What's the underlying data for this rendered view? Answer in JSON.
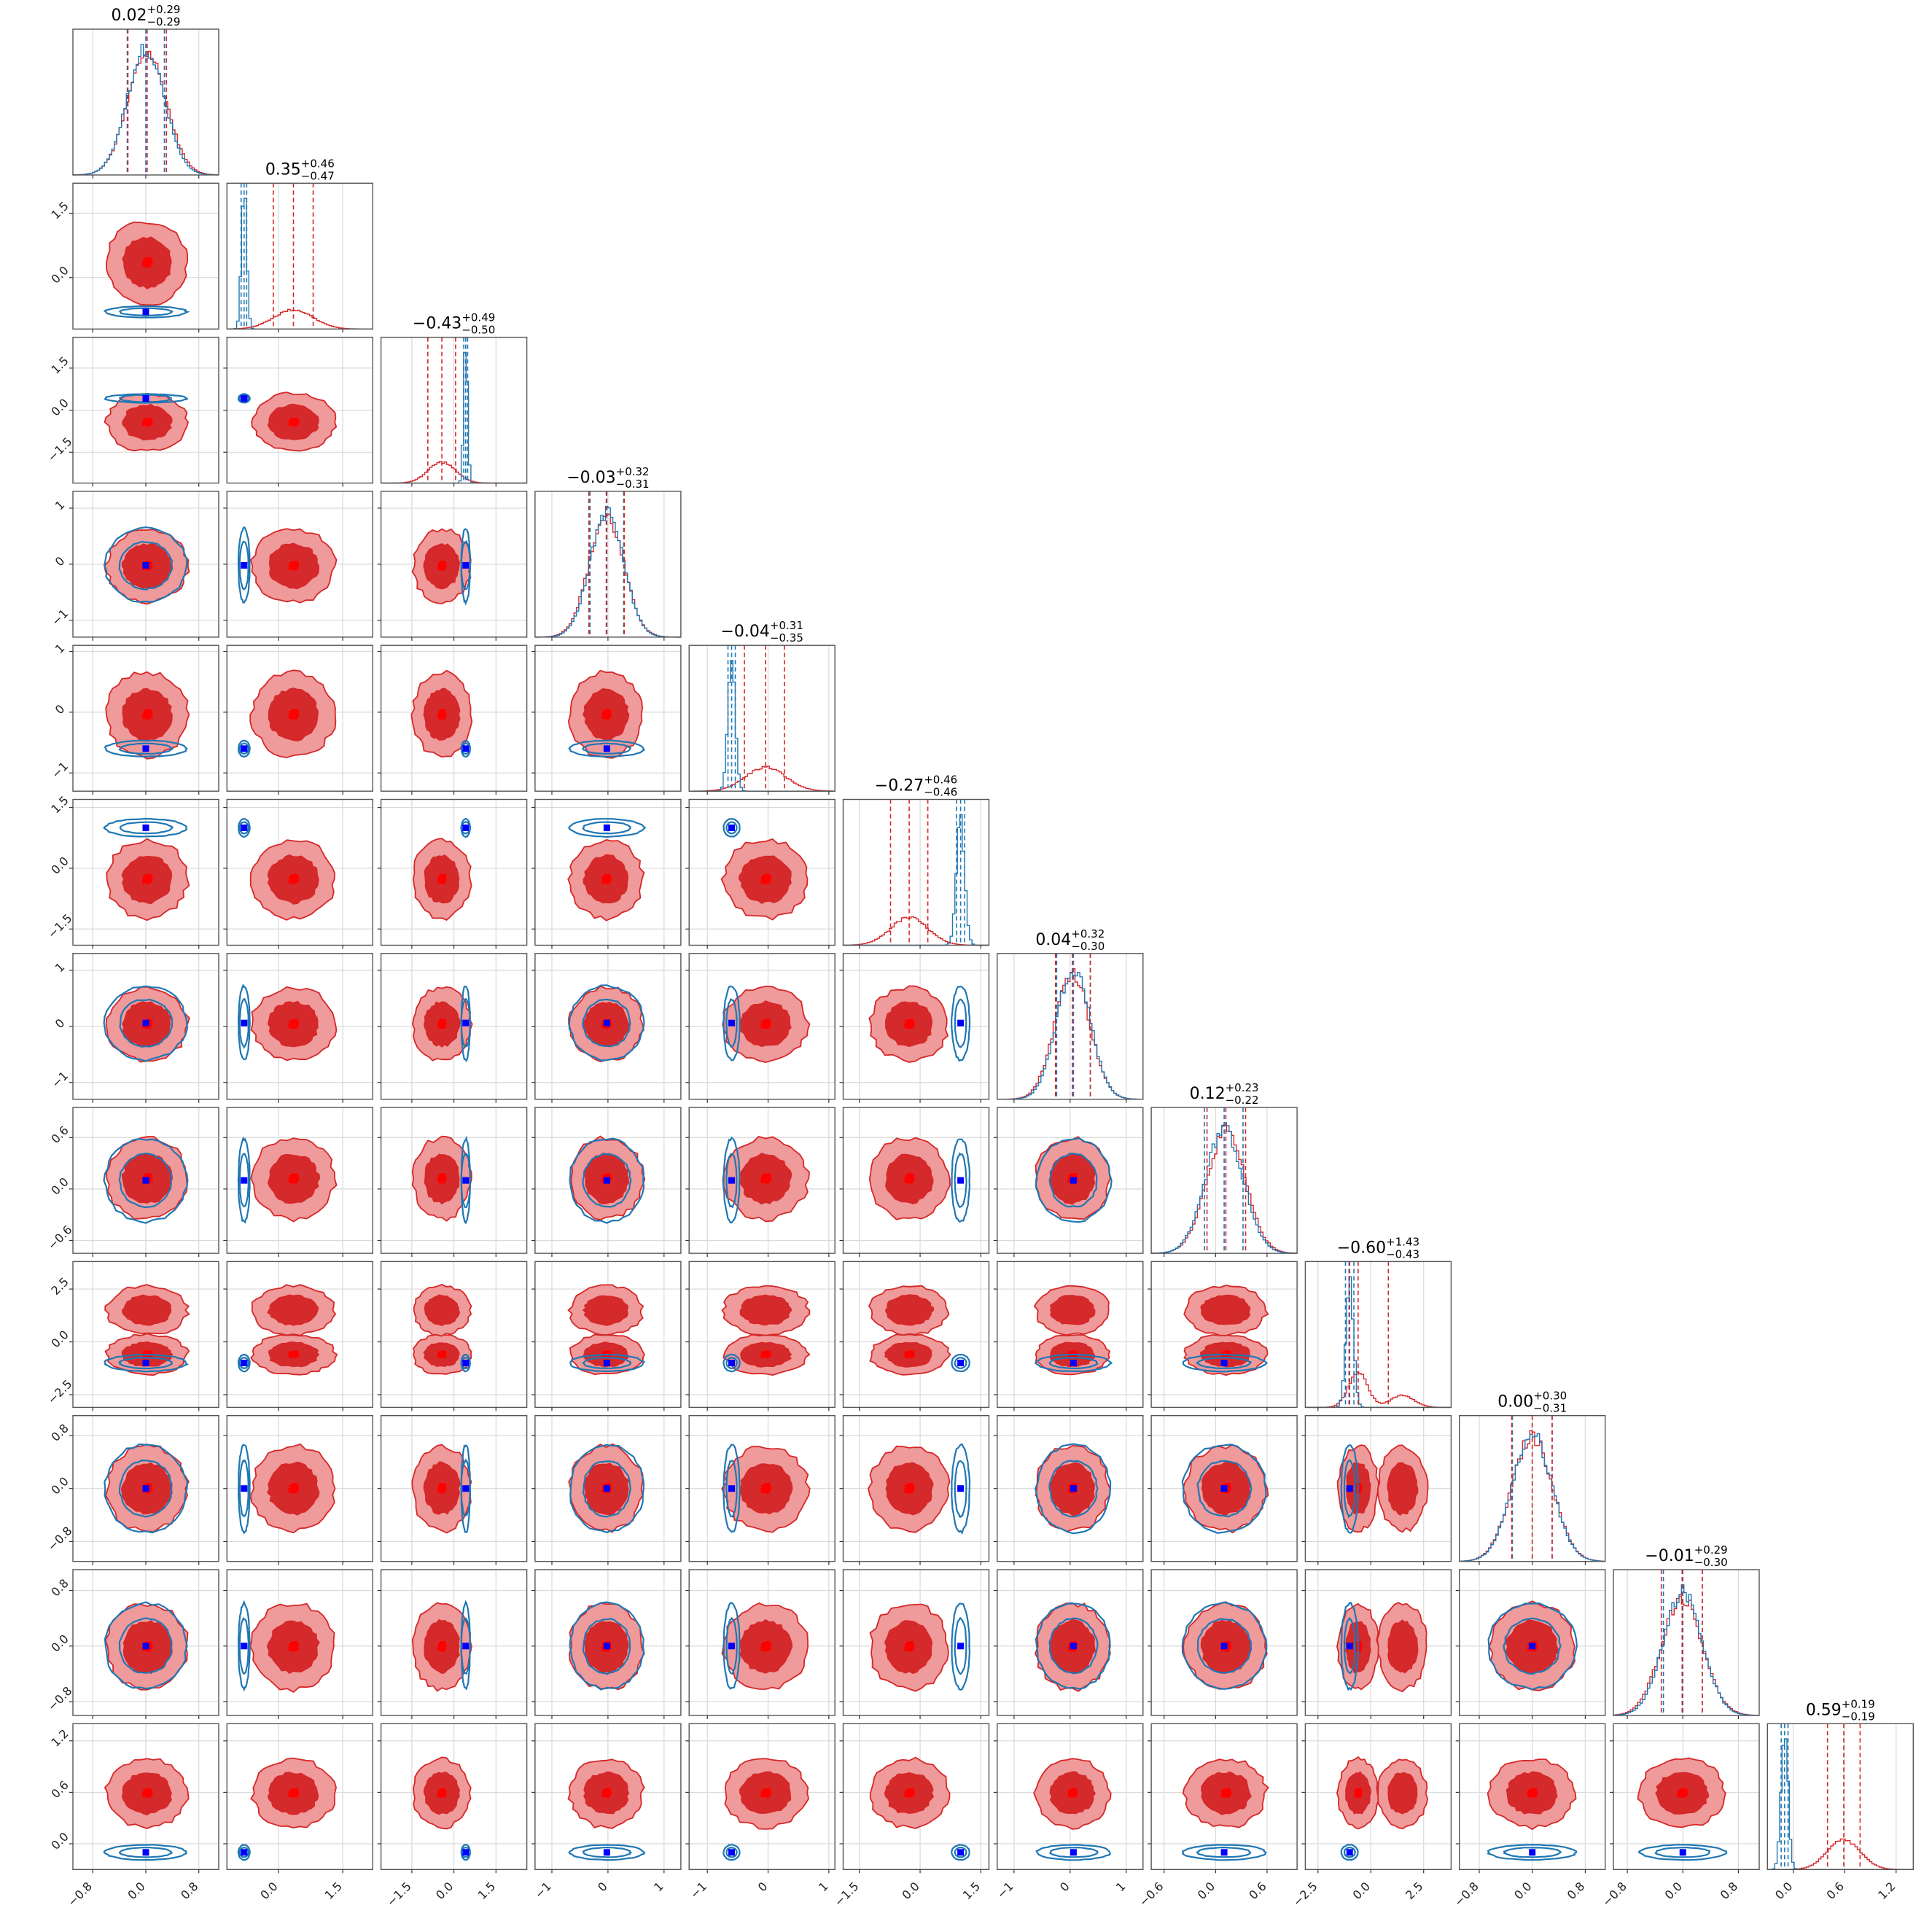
{
  "colors": {
    "red": "#d62728",
    "blue": "#1f77b4",
    "marker_red": "#ff0000",
    "marker_blue": "#0000ff",
    "red_fill_outer": "#ef9a9b",
    "red_fill_inner": "#d42a2b"
  },
  "chart_data": {
    "type": "corner",
    "n_params": 12,
    "titles": [
      {
        "main": "0.02",
        "plus": "+0.29",
        "minus": "−0.29"
      },
      {
        "main": "0.35",
        "plus": "+0.46",
        "minus": "−0.47"
      },
      {
        "main": "−0.43",
        "plus": "+0.49",
        "minus": "−0.50"
      },
      {
        "main": "−0.03",
        "plus": "+0.32",
        "minus": "−0.31"
      },
      {
        "main": "−0.04",
        "plus": "+0.31",
        "minus": "−0.35"
      },
      {
        "main": "−0.27",
        "plus": "+0.46",
        "minus": "−0.46"
      },
      {
        "main": "0.04",
        "plus": "+0.32",
        "minus": "−0.30"
      },
      {
        "main": "0.12",
        "plus": "+0.23",
        "minus": "−0.22"
      },
      {
        "main": "−0.60",
        "plus": "+1.43",
        "minus": "−0.43"
      },
      {
        "main": "0.00",
        "plus": "+0.30",
        "minus": "−0.31"
      },
      {
        "main": "−0.01",
        "plus": "+0.29",
        "minus": "−0.30"
      },
      {
        "main": "0.59",
        "plus": "+0.19",
        "minus": "−0.19"
      }
    ],
    "params": [
      {
        "range": [
          -1.1,
          1.1
        ],
        "ticks": [
          -0.8,
          0.0,
          0.8
        ],
        "tick_labels": [
          "−0.8",
          "0.0",
          "0.8"
        ],
        "red": {
          "mean": 0.02,
          "sd": 0.29
        },
        "blue": {
          "mean": 0.0,
          "sd": 0.28
        },
        "lines": {
          "red": [
            -0.27,
            0.02,
            0.31
          ],
          "blue": [
            -0.28,
            0.0,
            0.28
          ]
        }
      },
      {
        "range": [
          -1.2,
          2.2
        ],
        "ticks": [
          0.0,
          1.5
        ],
        "tick_labels": [
          "0.0",
          "1.5"
        ],
        "y_ticks": [
          0.0,
          1.5
        ],
        "y_tick_labels": [
          "0.0",
          "1.5"
        ],
        "red": {
          "mean": 0.35,
          "sd": 0.46
        },
        "blue": {
          "mean": -0.8,
          "sd": 0.06
        },
        "lines": {
          "red": [
            -0.12,
            0.35,
            0.81
          ],
          "blue": [
            -0.87,
            -0.8,
            -0.74
          ]
        }
      },
      {
        "range": [
          -2.6,
          2.6
        ],
        "ticks": [
          -1.5,
          0.0,
          1.5
        ],
        "tick_labels": [
          "−1.5",
          "0.0",
          "1.5"
        ],
        "red": {
          "mean": -0.43,
          "sd": 0.49
        },
        "blue": {
          "mean": 0.42,
          "sd": 0.07
        },
        "lines": {
          "red": [
            -0.93,
            -0.43,
            0.06
          ],
          "blue": [
            0.35,
            0.42,
            0.49
          ]
        }
      },
      {
        "range": [
          -1.3,
          1.3
        ],
        "ticks": [
          -1,
          0,
          1
        ],
        "tick_labels": [
          "−1",
          "0",
          "1"
        ],
        "red": {
          "mean": -0.03,
          "sd": 0.31
        },
        "blue": {
          "mean": -0.02,
          "sd": 0.3
        },
        "lines": {
          "red": [
            -0.34,
            -0.03,
            0.29
          ],
          "blue": [
            -0.32,
            -0.02,
            0.28
          ]
        }
      },
      {
        "range": [
          -1.3,
          1.1
        ],
        "ticks": [
          -1,
          0,
          1
        ],
        "tick_labels": [
          "−1",
          "0",
          "1"
        ],
        "red": {
          "mean": -0.04,
          "sd": 0.33
        },
        "blue": {
          "mean": -0.6,
          "sd": 0.06
        },
        "lines": {
          "red": [
            -0.39,
            -0.04,
            0.27
          ],
          "blue": [
            -0.66,
            -0.6,
            -0.54
          ]
        }
      },
      {
        "range": [
          -1.9,
          1.7
        ],
        "ticks": [
          -1.5,
          0.0,
          1.5
        ],
        "tick_labels": [
          "−1.5",
          "0.0",
          "1.5"
        ],
        "y_ticks": [
          -1.5,
          0.0,
          1.5
        ],
        "y_tick_labels": [
          "−1.5",
          "0.0",
          "1.5"
        ],
        "red": {
          "mean": -0.27,
          "sd": 0.46
        },
        "blue": {
          "mean": 1.0,
          "sd": 0.1
        },
        "lines": {
          "red": [
            -0.73,
            -0.27,
            0.19
          ],
          "blue": [
            0.9,
            1.0,
            1.1
          ]
        }
      },
      {
        "range": [
          -1.3,
          1.3
        ],
        "ticks": [
          -1,
          0,
          1
        ],
        "tick_labels": [
          "−1",
          "0",
          "1"
        ],
        "red": {
          "mean": 0.04,
          "sd": 0.31
        },
        "blue": {
          "mean": 0.06,
          "sd": 0.3
        },
        "lines": {
          "red": [
            -0.26,
            0.04,
            0.36
          ],
          "blue": [
            -0.24,
            0.06,
            0.36
          ]
        }
      },
      {
        "range": [
          -0.75,
          0.95
        ],
        "ticks": [
          -0.6,
          0.0,
          0.6
        ],
        "tick_labels": [
          "−0.6",
          "0.0",
          "0.6"
        ],
        "red": {
          "mean": 0.12,
          "sd": 0.225
        },
        "blue": {
          "mean": 0.1,
          "sd": 0.22
        },
        "lines": {
          "red": [
            -0.1,
            0.12,
            0.35
          ],
          "blue": [
            -0.13,
            0.1,
            0.32
          ]
        }
      },
      {
        "range": [
          -3.1,
          3.8
        ],
        "ticks": [
          -2.5,
          0.0,
          2.5
        ],
        "tick_labels": [
          "−2.5",
          "0.0",
          "2.5"
        ],
        "red": {
          "mean": -0.6,
          "sd": 0.45,
          "mean2": 1.5,
          "sd2": 0.55,
          "w2": 0.35
        },
        "blue": {
          "mean": -1.0,
          "sd": 0.18
        },
        "lines": {
          "red": [
            -1.03,
            -0.6,
            0.83
          ],
          "blue": [
            -1.2,
            -1.0,
            -0.8
          ]
        }
      },
      {
        "range": [
          -1.1,
          1.1
        ],
        "ticks": [
          -0.8,
          0.0,
          0.8
        ],
        "tick_labels": [
          "−0.8",
          "0.0",
          "0.8"
        ],
        "red": {
          "mean": 0.0,
          "sd": 0.305
        },
        "blue": {
          "mean": 0.0,
          "sd": 0.3
        },
        "lines": {
          "red": [
            -0.31,
            0.0,
            0.3
          ],
          "blue": [
            -0.3,
            0.0,
            0.3
          ]
        }
      },
      {
        "range": [
          -1.0,
          1.1
        ],
        "ticks": [
          -0.8,
          0.0,
          0.8
        ],
        "tick_labels": [
          "−0.8",
          "0.0",
          "0.8"
        ],
        "red": {
          "mean": -0.01,
          "sd": 0.295
        },
        "blue": {
          "mean": 0.0,
          "sd": 0.28
        },
        "lines": {
          "red": [
            -0.31,
            -0.01,
            0.28
          ],
          "blue": [
            -0.28,
            0.0,
            0.28
          ]
        }
      },
      {
        "range": [
          -0.3,
          1.4
        ],
        "ticks": [
          0.0,
          0.6,
          1.2
        ],
        "tick_labels": [
          "0.0",
          "0.6",
          "1.2"
        ],
        "y_ticks": [
          0.0,
          0.6,
          1.2
        ],
        "y_tick_labels": [
          "0.0",
          "0.6",
          "1.2"
        ],
        "red": {
          "mean": 0.59,
          "sd": 0.19
        },
        "blue": {
          "mean": -0.1,
          "sd": 0.04
        },
        "lines": {
          "red": [
            0.4,
            0.59,
            0.78
          ],
          "blue": [
            -0.14,
            -0.1,
            -0.06
          ]
        }
      }
    ],
    "red_square_offsets": [
      0.0,
      0.02,
      -0.03,
      0.04,
      -0.02,
      0.05,
      0.03,
      -0.04
    ],
    "notes_visible": "none"
  }
}
